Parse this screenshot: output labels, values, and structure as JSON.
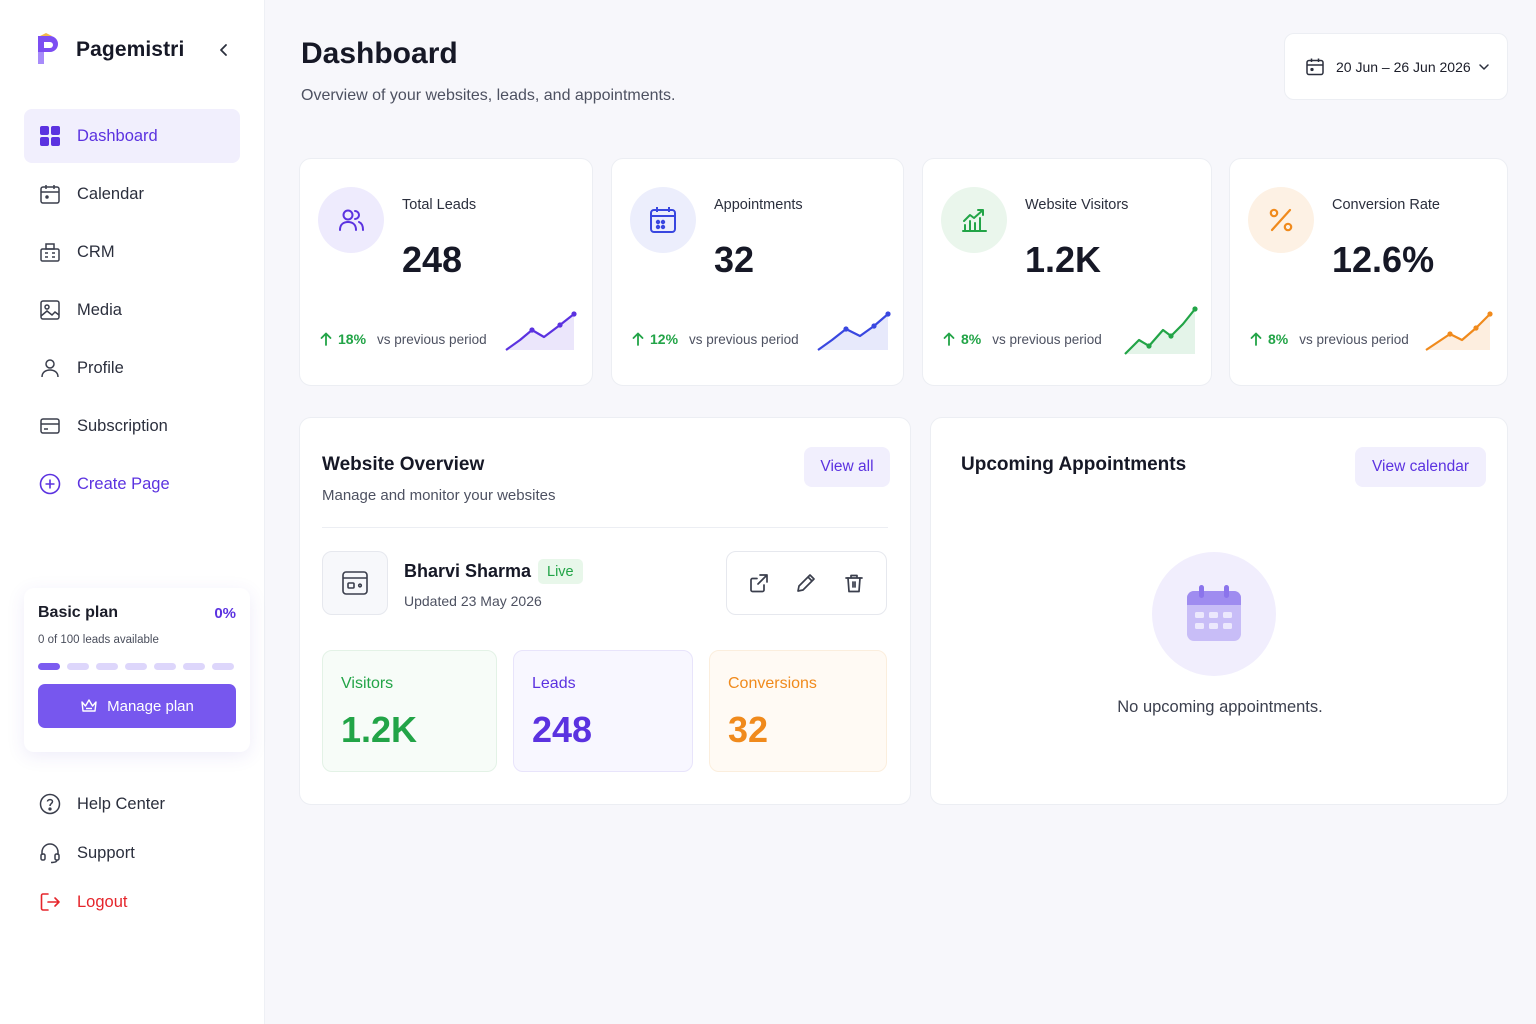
{
  "app": {
    "name": "Pagemistri"
  },
  "sidebar": {
    "items": [
      {
        "label": "Dashboard",
        "icon": "grid-icon",
        "active": true
      },
      {
        "label": "Calendar",
        "icon": "calendar-icon"
      },
      {
        "label": "CRM",
        "icon": "crm-building-icon"
      },
      {
        "label": "Media",
        "icon": "image-icon"
      },
      {
        "label": "Profile",
        "icon": "user-icon"
      },
      {
        "label": "Subscription",
        "icon": "card-icon"
      },
      {
        "label": "Create Page",
        "icon": "plus-circle-icon"
      }
    ],
    "plan": {
      "title": "Basic plan",
      "percent": "0%",
      "usage": "0 of 100 leads available",
      "button": "Manage plan"
    },
    "bottom": [
      {
        "label": "Help Center",
        "icon": "help-icon"
      },
      {
        "label": "Support",
        "icon": "headset-icon"
      },
      {
        "label": "Logout",
        "icon": "logout-icon"
      }
    ]
  },
  "header": {
    "title": "Dashboard",
    "subtitle": "Overview of your websites, leads, and appointments.",
    "date_range": "20 Jun – 26 Jun 2026"
  },
  "stats": [
    {
      "label": "Total Leads",
      "value": "248",
      "change": "18%",
      "compare": "vs previous period",
      "color": "#5b32e0",
      "icon": "users-icon"
    },
    {
      "label": "Appointments",
      "value": "32",
      "change": "12%",
      "compare": "vs previous period",
      "color": "#3947e0",
      "icon": "calendar-icon"
    },
    {
      "label": "Website Visitors",
      "value": "1.2K",
      "change": "8%",
      "compare": "vs previous period",
      "color": "#22a447",
      "icon": "chart-up-icon"
    },
    {
      "label": "Conversion Rate",
      "value": "12.6%",
      "change": "8%",
      "compare": "vs previous period",
      "color": "#f08a1c",
      "icon": "percent-icon"
    }
  ],
  "website_overview": {
    "title": "Website Overview",
    "subtitle": "Manage and monitor your websites",
    "view_all": "View all",
    "site": {
      "name": "Bharvi Sharma",
      "status": "Live",
      "updated": "Updated 23 May 2026"
    },
    "metrics": [
      {
        "label": "Visitors",
        "value": "1.2K",
        "color": "#22a447"
      },
      {
        "label": "Leads",
        "value": "248",
        "color": "#5b32e0"
      },
      {
        "label": "Conversions",
        "value": "32",
        "color": "#f08a1c"
      }
    ]
  },
  "appointments": {
    "title": "Upcoming Appointments",
    "view_calendar": "View calendar",
    "empty": "No upcoming appointments."
  }
}
